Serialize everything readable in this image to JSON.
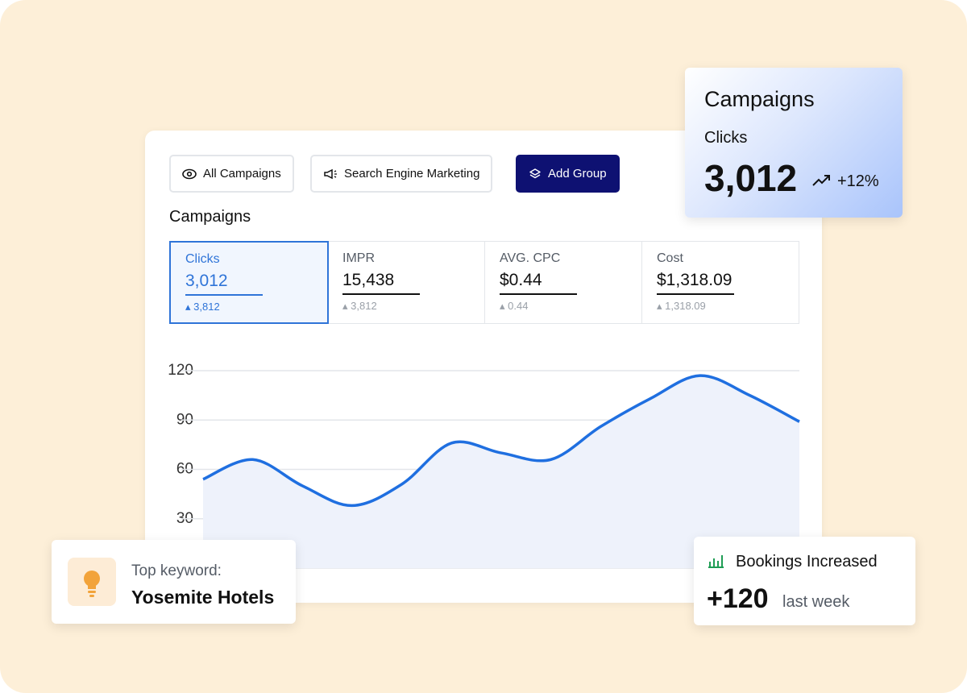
{
  "toolbar": {
    "buttons": [
      "All Campaigns",
      "Search Engine Marketing",
      "Add Group"
    ]
  },
  "section_title": "Campaigns",
  "metrics": [
    {
      "label": "Clicks",
      "value": "3,012",
      "change": "3,812"
    },
    {
      "label": "IMPR",
      "value": "15,438",
      "change": "3,812"
    },
    {
      "label": "AVG. CPC",
      "value": "$0.44",
      "change": "0.44"
    },
    {
      "label": "Cost",
      "value": "$1,318.09",
      "change": "1,318.09"
    }
  ],
  "chart_data": {
    "type": "line",
    "categories": [
      null,
      null,
      null,
      null,
      null,
      null,
      null,
      null,
      null,
      null,
      null,
      null,
      null
    ],
    "series": [
      {
        "name": "Clicks",
        "color": "#1f6fe0",
        "values": [
          54,
          66,
          50,
          38,
          51,
          76,
          70,
          66,
          86,
          103,
          117,
          105,
          89
        ]
      }
    ],
    "ylim": [
      0,
      120
    ],
    "yticks": [
      30,
      60,
      90,
      120
    ],
    "grid": true
  },
  "summary_card": {
    "title": "Campaigns",
    "metric": "Clicks",
    "value": "3,012",
    "change": "+12%"
  },
  "keyword_card": {
    "label": "Top keyword:",
    "value": "Yosemite Hotels"
  },
  "bookings_card": {
    "title": "Bookings Increased",
    "value": "+120",
    "period": "last week"
  }
}
